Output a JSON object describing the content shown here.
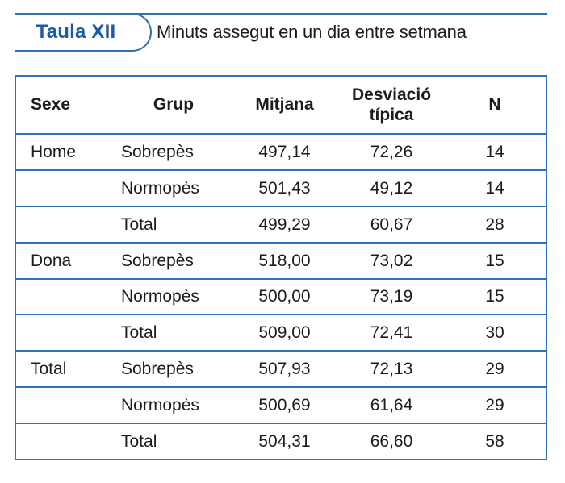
{
  "header": {
    "badge_label": "Taula XII",
    "title": "Minuts assegut en un dia entre setmana"
  },
  "colors": {
    "accent_blue": "#2d72b4",
    "badge_text_blue": "#1e5aab",
    "text_color": "#1c1c1c"
  },
  "table": {
    "columns": {
      "sexe": "Sexe",
      "grup": "Grup",
      "mitjana": "Mitjana",
      "desviacio_line1": "Desviació",
      "desviacio_line2": "típica",
      "n": "N"
    },
    "rows": [
      {
        "sexe": "Home",
        "grup": "Sobrepès",
        "mitjana": "497,14",
        "desviacio": "72,26",
        "n": "14"
      },
      {
        "sexe": "",
        "grup": "Normopès",
        "mitjana": "501,43",
        "desviacio": "49,12",
        "n": "14"
      },
      {
        "sexe": "",
        "grup": "Total",
        "mitjana": "499,29",
        "desviacio": "60,67",
        "n": "28"
      },
      {
        "sexe": "Dona",
        "grup": "Sobrepès",
        "mitjana": "518,00",
        "desviacio": "73,02",
        "n": "15"
      },
      {
        "sexe": "",
        "grup": "Normopès",
        "mitjana": "500,00",
        "desviacio": "73,19",
        "n": "15"
      },
      {
        "sexe": "",
        "grup": "Total",
        "mitjana": "509,00",
        "desviacio": "72,41",
        "n": "30"
      },
      {
        "sexe": "Total",
        "grup": "Sobrepès",
        "mitjana": "507,93",
        "desviacio": "72,13",
        "n": "29"
      },
      {
        "sexe": "",
        "grup": "Normopès",
        "mitjana": "500,69",
        "desviacio": "61,64",
        "n": "29"
      },
      {
        "sexe": "",
        "grup": "Total",
        "mitjana": "504,31",
        "desviacio": "66,60",
        "n": "58"
      }
    ]
  }
}
